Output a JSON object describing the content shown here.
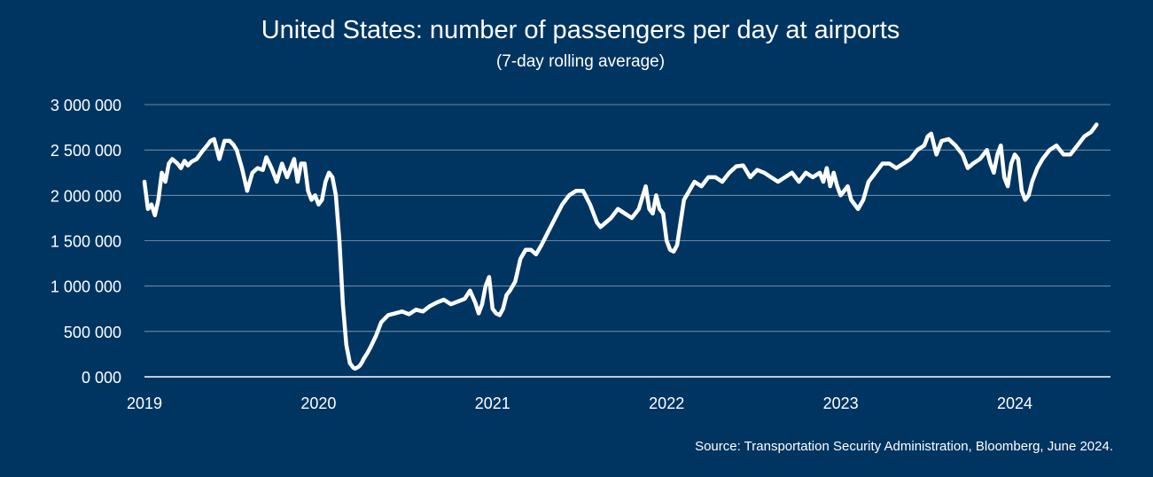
{
  "colors": {
    "background": "#003561",
    "line": "#ffffff",
    "grid": "#b8c6d6"
  },
  "chart_data": {
    "type": "line",
    "title": "United States: number of passengers per day at airports",
    "subtitle": "(7-day rolling average)",
    "source": "Source: Transportation Security Administration, Bloomberg, June 2024.",
    "xlabel": "",
    "ylabel": "",
    "xlim": [
      2019.0,
      2024.55
    ],
    "ylim": [
      0,
      3000000
    ],
    "x_ticks": [
      2019,
      2020,
      2021,
      2022,
      2023,
      2024
    ],
    "x_tick_labels": [
      "2019",
      "2020",
      "2021",
      "2022",
      "2023",
      "2024"
    ],
    "y_ticks": [
      0,
      500000,
      1000000,
      1500000,
      2000000,
      2500000,
      3000000
    ],
    "y_tick_labels": [
      "0 000",
      "500 000",
      "1 000 000",
      "1 500 000",
      "2 000 000",
      "2 500 000",
      "3 000 000"
    ],
    "grid": true,
    "series": [
      {
        "x": [
          2019.0,
          2019.02,
          2019.04,
          2019.06,
          2019.08,
          2019.1,
          2019.12,
          2019.14,
          2019.16,
          2019.19,
          2019.21,
          2019.23,
          2019.25,
          2019.27,
          2019.3,
          2019.33,
          2019.36,
          2019.38,
          2019.4,
          2019.43,
          2019.46,
          2019.49,
          2019.51,
          2019.53,
          2019.56,
          2019.59,
          2019.62,
          2019.65,
          2019.68,
          2019.7,
          2019.73,
          2019.76,
          2019.79,
          2019.82,
          2019.84,
          2019.86,
          2019.88,
          2019.9,
          2019.92,
          2019.94,
          2019.96,
          2019.98,
          2020.0,
          2020.02,
          2020.04,
          2020.06,
          2020.08,
          2020.1,
          2020.12,
          2020.14,
          2020.16,
          2020.18,
          2020.2,
          2020.21,
          2020.22,
          2020.23,
          2020.24,
          2020.25,
          2020.26,
          2020.28,
          2020.3,
          2020.33,
          2020.36,
          2020.4,
          2020.44,
          2020.48,
          2020.52,
          2020.56,
          2020.6,
          2020.64,
          2020.68,
          2020.72,
          2020.76,
          2020.8,
          2020.84,
          2020.87,
          2020.9,
          2020.92,
          2020.94,
          2020.96,
          2020.98,
          2021.0,
          2021.02,
          2021.04,
          2021.06,
          2021.08,
          2021.1,
          2021.13,
          2021.16,
          2021.19,
          2021.22,
          2021.25,
          2021.28,
          2021.32,
          2021.36,
          2021.4,
          2021.44,
          2021.48,
          2021.52,
          2021.56,
          2021.6,
          2021.62,
          2021.65,
          2021.68,
          2021.72,
          2021.76,
          2021.8,
          2021.84,
          2021.88,
          2021.9,
          2021.92,
          2021.94,
          2021.96,
          2021.98,
          2022.0,
          2022.02,
          2022.04,
          2022.06,
          2022.08,
          2022.1,
          2022.13,
          2022.16,
          2022.2,
          2022.24,
          2022.28,
          2022.32,
          2022.36,
          2022.4,
          2022.44,
          2022.48,
          2022.52,
          2022.56,
          2022.6,
          2022.64,
          2022.68,
          2022.72,
          2022.76,
          2022.8,
          2022.84,
          2022.88,
          2022.9,
          2022.92,
          2022.94,
          2022.96,
          2022.98,
          2023.0,
          2023.02,
          2023.04,
          2023.06,
          2023.08,
          2023.1,
          2023.13,
          2023.16,
          2023.2,
          2023.24,
          2023.28,
          2023.32,
          2023.36,
          2023.4,
          2023.44,
          2023.48,
          2023.5,
          2023.52,
          2023.55,
          2023.58,
          2023.62,
          2023.66,
          2023.7,
          2023.73,
          2023.76,
          2023.8,
          2023.84,
          2023.86,
          2023.88,
          2023.9,
          2023.92,
          2023.94,
          2023.96,
          2023.98,
          2024.0,
          2024.02,
          2024.04,
          2024.06,
          2024.08,
          2024.1,
          2024.13,
          2024.16,
          2024.2,
          2024.24,
          2024.28,
          2024.32,
          2024.36,
          2024.4,
          2024.44,
          2024.47
        ],
        "y": [
          2150000,
          1850000,
          1900000,
          1780000,
          1950000,
          2250000,
          2150000,
          2350000,
          2400000,
          2350000,
          2300000,
          2380000,
          2330000,
          2370000,
          2400000,
          2480000,
          2550000,
          2600000,
          2620000,
          2400000,
          2600000,
          2600000,
          2560000,
          2500000,
          2300000,
          2050000,
          2250000,
          2300000,
          2280000,
          2420000,
          2300000,
          2150000,
          2350000,
          2200000,
          2300000,
          2400000,
          2150000,
          2350000,
          2350000,
          2050000,
          1950000,
          2000000,
          1900000,
          1950000,
          2150000,
          2250000,
          2200000,
          2000000,
          1500000,
          800000,
          350000,
          150000,
          100000,
          90000,
          100000,
          110000,
          130000,
          160000,
          200000,
          260000,
          330000,
          450000,
          600000,
          680000,
          700000,
          720000,
          690000,
          740000,
          720000,
          780000,
          820000,
          850000,
          800000,
          830000,
          860000,
          950000,
          820000,
          700000,
          800000,
          1000000,
          1100000,
          750000,
          700000,
          680000,
          750000,
          900000,
          950000,
          1050000,
          1300000,
          1400000,
          1400000,
          1350000,
          1450000,
          1600000,
          1750000,
          1900000,
          2000000,
          2050000,
          2050000,
          1900000,
          1700000,
          1650000,
          1700000,
          1750000,
          1850000,
          1800000,
          1750000,
          1850000,
          2100000,
          1850000,
          1800000,
          2000000,
          1850000,
          1800000,
          1500000,
          1400000,
          1380000,
          1450000,
          1700000,
          1950000,
          2050000,
          2150000,
          2100000,
          2200000,
          2200000,
          2150000,
          2250000,
          2320000,
          2330000,
          2200000,
          2280000,
          2250000,
          2200000,
          2150000,
          2200000,
          2250000,
          2150000,
          2250000,
          2200000,
          2250000,
          2150000,
          2300000,
          2100000,
          2250000,
          2100000,
          2000000,
          2050000,
          2100000,
          1950000,
          1900000,
          1850000,
          1950000,
          2150000,
          2250000,
          2350000,
          2350000,
          2300000,
          2350000,
          2400000,
          2500000,
          2550000,
          2650000,
          2680000,
          2450000,
          2600000,
          2620000,
          2550000,
          2450000,
          2300000,
          2350000,
          2400000,
          2500000,
          2350000,
          2250000,
          2450000,
          2550000,
          2200000,
          2100000,
          2350000,
          2450000,
          2400000,
          2050000,
          1950000,
          2000000,
          2150000,
          2300000,
          2400000,
          2500000,
          2550000,
          2450000,
          2450000,
          2550000,
          2650000,
          2700000,
          2780000
        ]
      }
    ]
  }
}
